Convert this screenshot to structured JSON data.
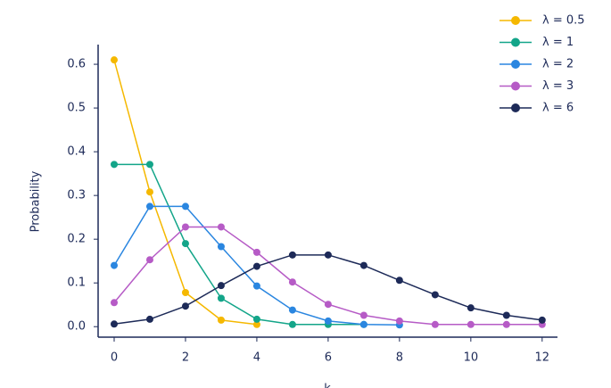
{
  "chart_data": {
    "type": "line",
    "x": [
      0,
      1,
      2,
      3,
      4,
      5,
      6,
      7,
      8,
      9,
      10,
      11,
      12
    ],
    "series": [
      {
        "name": "λ = 0.5",
        "color": "#f5b800",
        "values": [
          0.61,
          0.308,
          0.078,
          0.015,
          0.005,
          null,
          null,
          null,
          null,
          null,
          null,
          null,
          null
        ]
      },
      {
        "name": "λ = 1",
        "color": "#13a589",
        "values": [
          0.371,
          0.371,
          0.19,
          0.065,
          0.017,
          0.005,
          0.005,
          0.005,
          null,
          null,
          null,
          null,
          null
        ]
      },
      {
        "name": "λ = 2",
        "color": "#2a86e0",
        "values": [
          0.14,
          0.275,
          0.275,
          0.183,
          0.093,
          0.038,
          0.013,
          0.005,
          0.004,
          null,
          null,
          null,
          null
        ]
      },
      {
        "name": "λ = 3",
        "color": "#b65bc6",
        "values": [
          0.055,
          0.153,
          0.228,
          0.228,
          0.17,
          0.102,
          0.051,
          0.026,
          0.013,
          0.005,
          0.005,
          0.005,
          0.005
        ]
      },
      {
        "name": "λ = 6",
        "color": "#1d2a58",
        "values": [
          0.006,
          0.017,
          0.047,
          0.094,
          0.138,
          0.164,
          0.164,
          0.14,
          0.106,
          0.073,
          0.043,
          0.026,
          0.015
        ]
      }
    ],
    "xlabel": "k",
    "ylabel": "Probability",
    "xlim": [
      -0.45,
      12.43
    ],
    "ylim": [
      -0.024,
      0.645
    ],
    "xticks": [
      0,
      2,
      4,
      6,
      8,
      10,
      12
    ],
    "yticks": [
      {
        "value": 0,
        "label": "0.0"
      },
      0.1,
      0.2,
      0.3,
      0.4,
      0.5,
      0.6
    ],
    "legend": "upper-right"
  }
}
